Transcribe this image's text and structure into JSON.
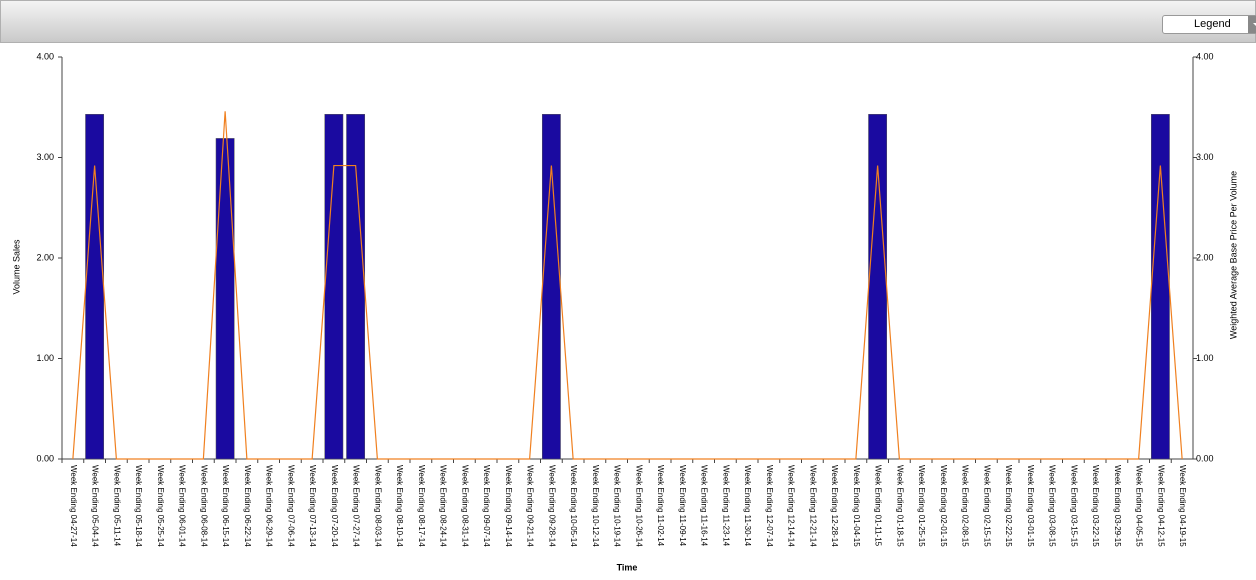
{
  "legend_button": "Legend",
  "chart_data": {
    "type": "bar_line",
    "x_label": "Time",
    "y_label": "Volume Sales",
    "y2_label": "Weighted Average Base Price Per Volume",
    "categories": [
      "Week Ending 04-27-14",
      "Week Ending 05-04-14",
      "Week Ending 05-11-14",
      "Week Ending 05-18-14",
      "Week Ending 05-25-14",
      "Week Ending 06-01-14",
      "Week Ending 06-08-14",
      "Week Ending 06-15-14",
      "Week Ending 06-22-14",
      "Week Ending 06-29-14",
      "Week Ending 07-06-14",
      "Week Ending 07-13-14",
      "Week Ending 07-20-14",
      "Week Ending 07-27-14",
      "Week Ending 08-03-14",
      "Week Ending 08-10-14",
      "Week Ending 08-17-14",
      "Week Ending 08-24-14",
      "Week Ending 08-31-14",
      "Week Ending 09-07-14",
      "Week Ending 09-14-14",
      "Week Ending 09-21-14",
      "Week Ending 09-28-14",
      "Week Ending 10-05-14",
      "Week Ending 10-12-14",
      "Week Ending 10-19-14",
      "Week Ending 10-26-14",
      "Week Ending 11-02-14",
      "Week Ending 11-09-14",
      "Week Ending 11-16-14",
      "Week Ending 11-23-14",
      "Week Ending 11-30-14",
      "Week Ending 12-07-14",
      "Week Ending 12-14-14",
      "Week Ending 12-21-14",
      "Week Ending 12-28-14",
      "Week Ending 01-04-15",
      "Week Ending 01-11-15",
      "Week Ending 01-18-15",
      "Week Ending 01-25-15",
      "Week Ending 02-01-15",
      "Week Ending 02-08-15",
      "Week Ending 02-15-15",
      "Week Ending 02-22-15",
      "Week Ending 03-01-15",
      "Week Ending 03-08-15",
      "Week Ending 03-15-15",
      "Week Ending 03-22-15",
      "Week Ending 03-29-15",
      "Week Ending 04-05-15",
      "Week Ending 04-12-15",
      "Week Ending 04-19-15"
    ],
    "series": [
      {
        "kind": "bar",
        "axis": "y",
        "color": "#1a0aa0",
        "values": [
          0,
          3.43,
          0,
          0,
          0,
          0,
          0,
          3.19,
          0,
          0,
          0,
          0,
          3.43,
          3.43,
          0,
          0,
          0,
          0,
          0,
          0,
          0,
          0,
          3.43,
          0,
          0,
          0,
          0,
          0,
          0,
          0,
          0,
          0,
          0,
          0,
          0,
          0,
          0,
          3.43,
          0,
          0,
          0,
          0,
          0,
          0,
          0,
          0,
          0,
          0,
          0,
          0,
          3.43,
          0
        ]
      },
      {
        "kind": "line",
        "axis": "y2",
        "color": "#f08020",
        "values": [
          0,
          2.92,
          0,
          0,
          0,
          0,
          0,
          3.46,
          0,
          0,
          0,
          0,
          2.92,
          2.92,
          0,
          0,
          0,
          0,
          0,
          0,
          0,
          0,
          2.92,
          0,
          0,
          0,
          0,
          0,
          0,
          0,
          0,
          0,
          0,
          0,
          0,
          0,
          0,
          2.92,
          0,
          0,
          0,
          0,
          0,
          0,
          0,
          0,
          0,
          0,
          0,
          0,
          2.92,
          0
        ]
      }
    ],
    "ylim": [
      0,
      4
    ],
    "yticks": [
      {
        "value": 0,
        "label": "0.00"
      },
      {
        "value": 1,
        "label": "1.00"
      },
      {
        "value": 2,
        "label": "2.00"
      },
      {
        "value": 3,
        "label": "3.00"
      },
      {
        "value": 4,
        "label": "4.00"
      }
    ],
    "y2lim": [
      0,
      4
    ],
    "y2ticks": [
      {
        "value": 0,
        "label": "0.00"
      },
      {
        "value": 1,
        "label": "1.00"
      },
      {
        "value": 2,
        "label": "2.00"
      },
      {
        "value": 3,
        "label": "3.00"
      },
      {
        "value": 4,
        "label": "4.00"
      }
    ]
  }
}
